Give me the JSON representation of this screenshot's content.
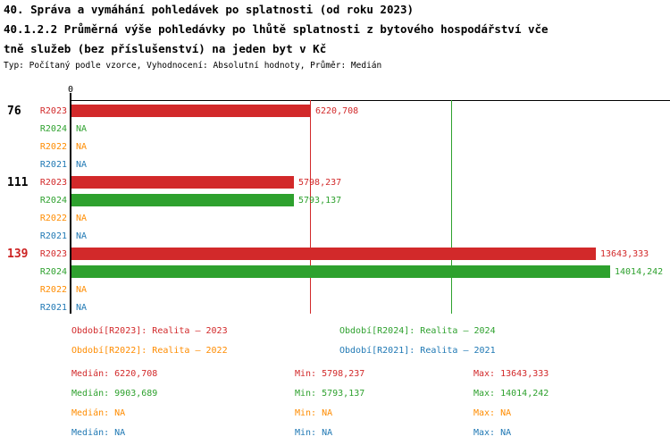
{
  "title": {
    "line1": "40. Správa a vymáhání pohledávek po splatnosti (od roku 2023)",
    "line2": "40.1.2.2 Průměrná výše pohledávky po lhůtě splatnosti z bytového hospodářství vče",
    "line3": "tně služeb (bez příslušenství) na jeden byt v Kč",
    "subtitle": "Typ: Počítaný podle vzorce, Vyhodnocení: Absolutní hodnoty, Průměr: Medián"
  },
  "colors": {
    "red": "#d2292a",
    "green": "#2ea12e",
    "orange": "#ff8c00",
    "blue": "#1f78b4",
    "highlight": "#cc2222",
    "axis": "#000000"
  },
  "chart_data": {
    "type": "bar",
    "orientation": "horizontal",
    "title": "40.1.2.2 Průměrná výše pohledávky po lhůtě splatnosti z bytového hospodářství včetně služeb (bez příslušenství) na jeden byt v Kč",
    "xlim": [
      0,
      15600
    ],
    "x_tick_labels": [
      "0"
    ],
    "grid": false,
    "categories": [
      "76",
      "111",
      "139"
    ],
    "groups": [
      {
        "label": "76",
        "rows": [
          {
            "series": "R2023",
            "color": "red",
            "value": 6220.708,
            "value_label": "6220,708"
          },
          {
            "series": "R2024",
            "color": "green",
            "value": null,
            "value_label": "NA"
          },
          {
            "series": "R2022",
            "color": "orange",
            "value": null,
            "value_label": "NA"
          },
          {
            "series": "R2021",
            "color": "blue",
            "value": null,
            "value_label": "NA"
          }
        ]
      },
      {
        "label": "111",
        "rows": [
          {
            "series": "R2023",
            "color": "red",
            "value": 5798.237,
            "value_label": "5798,237"
          },
          {
            "series": "R2024",
            "color": "green",
            "value": 5793.137,
            "value_label": "5793,137"
          },
          {
            "series": "R2022",
            "color": "orange",
            "value": null,
            "value_label": "NA"
          },
          {
            "series": "R2021",
            "color": "blue",
            "value": null,
            "value_label": "NA"
          }
        ]
      },
      {
        "label": "139",
        "rows": [
          {
            "series": "R2023",
            "color": "red",
            "value": 13643.333,
            "value_label": "13643,333"
          },
          {
            "series": "R2024",
            "color": "green",
            "value": 14014.242,
            "value_label": "14014,242"
          },
          {
            "series": "R2022",
            "color": "orange",
            "value": null,
            "value_label": "NA"
          },
          {
            "series": "R2021",
            "color": "blue",
            "value": null,
            "value_label": "NA"
          }
        ]
      }
    ],
    "reference_lines": [
      {
        "name": "median-R2023",
        "color": "red",
        "value": 6220.708
      },
      {
        "name": "median-R2024",
        "color": "green",
        "value": 9903.689
      }
    ]
  },
  "legend": {
    "items": [
      {
        "text": "Období[R2023]: Realita – 2023",
        "color": "red"
      },
      {
        "text": "Období[R2024]: Realita – 2024",
        "color": "green"
      },
      {
        "text": "Období[R2022]: Realita – 2022",
        "color": "orange"
      },
      {
        "text": "Období[R2021]: Realita – 2021",
        "color": "blue"
      }
    ]
  },
  "stats": {
    "rows": [
      {
        "color": "red",
        "median": "Medián: 6220,708",
        "min": "Min: 5798,237",
        "max": "Max: 13643,333"
      },
      {
        "color": "green",
        "median": "Medián: 9903,689",
        "min": "Min: 5793,137",
        "max": "Max: 14014,242"
      },
      {
        "color": "orange",
        "median": "Medián: NA",
        "min": "Min: NA",
        "max": "Max: NA"
      },
      {
        "color": "blue",
        "median": "Medián: NA",
        "min": "Min: NA",
        "max": "Max: NA"
      }
    ]
  }
}
